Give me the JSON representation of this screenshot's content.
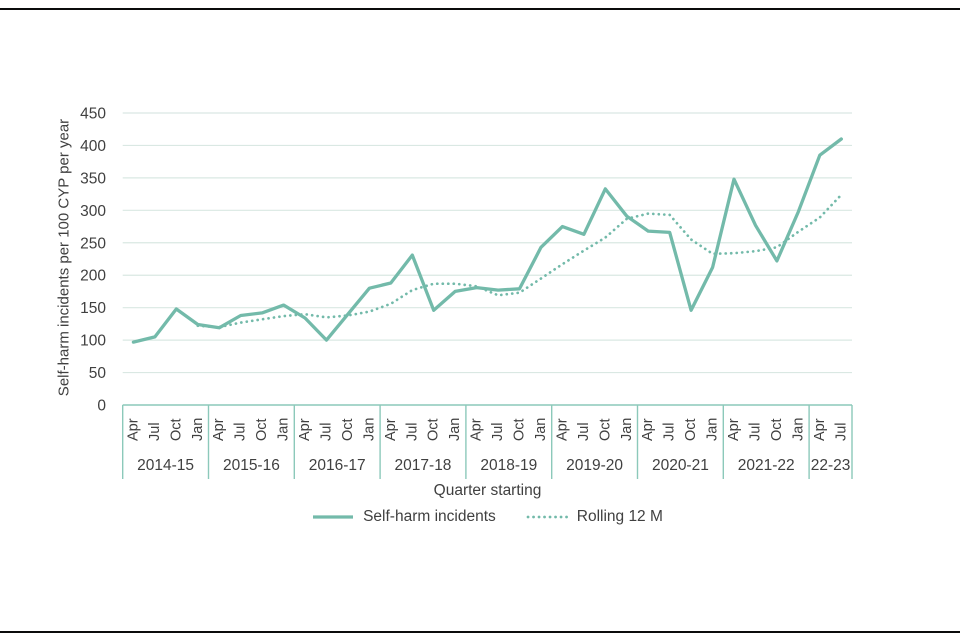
{
  "page": {
    "frame_color": "#0b0c0c",
    "background": "#ffffff"
  },
  "chart_data": {
    "type": "line",
    "title": "",
    "ylabel": "Self-harm incidents per 100 CYP per year",
    "xlabel": "Quarter starting",
    "ylim": [
      0,
      450
    ],
    "yticks": [
      0,
      50,
      100,
      150,
      200,
      250,
      300,
      350,
      400,
      450
    ],
    "grid": true,
    "legend_position": "bottom",
    "colors": {
      "accent": "#73baaa",
      "band": "#8cc9ba",
      "grid": "#dae8e3",
      "text": "#404040"
    },
    "year_groups": [
      {
        "label": "2014-15",
        "quarters": [
          "Apr",
          "Jul",
          "Oct",
          "Jan"
        ]
      },
      {
        "label": "2015-16",
        "quarters": [
          "Apr",
          "Jul",
          "Oct",
          "Jan"
        ]
      },
      {
        "label": "2016-17",
        "quarters": [
          "Apr",
          "Jul",
          "Oct",
          "Jan"
        ]
      },
      {
        "label": "2017-18",
        "quarters": [
          "Apr",
          "Jul",
          "Oct",
          "Jan"
        ]
      },
      {
        "label": "2018-19",
        "quarters": [
          "Apr",
          "Jul",
          "Oct",
          "Jan"
        ]
      },
      {
        "label": "2019-20",
        "quarters": [
          "Apr",
          "Jul",
          "Oct",
          "Jan"
        ]
      },
      {
        "label": "2020-21",
        "quarters": [
          "Apr",
          "Jul",
          "Oct",
          "Jan"
        ]
      },
      {
        "label": "2021-22",
        "quarters": [
          "Apr",
          "Jul",
          "Oct",
          "Jan"
        ]
      },
      {
        "label": "22-23",
        "quarters": [
          "Apr",
          "Jul"
        ]
      }
    ],
    "series": [
      {
        "name": "Self-harm incidents",
        "style": "solid",
        "color": "#73baaa",
        "values": [
          97,
          105,
          148,
          124,
          119,
          138,
          142,
          154,
          134,
          100,
          140,
          180,
          188,
          231,
          146,
          175,
          181,
          177,
          179,
          243,
          275,
          263,
          333,
          291,
          268,
          266,
          146,
          212,
          348,
          277,
          222,
          298,
          385,
          410
        ]
      },
      {
        "name": "Rolling 12 M",
        "style": "dotted",
        "color": "#73baaa",
        "values": [
          null,
          null,
          null,
          122,
          120,
          127,
          132,
          137,
          140,
          135,
          138,
          144,
          156,
          177,
          187,
          187,
          183,
          169,
          173,
          195,
          217,
          238,
          258,
          287,
          295,
          293,
          255,
          233,
          234,
          237,
          243,
          267,
          289,
          324
        ]
      }
    ]
  }
}
